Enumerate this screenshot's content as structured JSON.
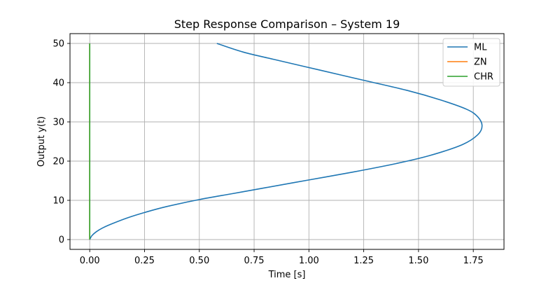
{
  "chart_data": {
    "type": "line",
    "title": "Step Response Comparison – System 19",
    "xlabel": "Time [s]",
    "ylabel": "Output y(t)",
    "xlim": [
      -0.09,
      1.89
    ],
    "ylim": [
      -2.5,
      52.5
    ],
    "xticks": [
      0.0,
      0.25,
      0.5,
      0.75,
      1.0,
      1.25,
      1.5,
      1.75
    ],
    "xtick_labels": [
      "0.00",
      "0.25",
      "0.50",
      "0.75",
      "1.00",
      "1.25",
      "1.50",
      "1.75"
    ],
    "yticks": [
      0,
      10,
      20,
      30,
      40,
      50
    ],
    "ytick_labels": [
      "0",
      "10",
      "20",
      "30",
      "40",
      "50"
    ],
    "grid": true,
    "legend_position": "top-right",
    "series": [
      {
        "name": "ML",
        "color": "#1f77b4",
        "x": [
          0.0,
          0.01,
          0.03,
          0.06,
          0.1,
          0.17,
          0.25,
          0.35,
          0.5,
          0.65,
          0.8,
          1.0,
          1.2,
          1.4,
          1.55,
          1.7,
          1.77,
          1.79,
          1.77,
          1.72,
          1.6,
          1.45,
          1.25,
          1.05,
          0.85,
          0.7,
          0.58
        ],
        "y": [
          0.0,
          1.0,
          2.0,
          3.0,
          4.0,
          5.5,
          6.9,
          8.4,
          10.2,
          11.7,
          13.2,
          15.2,
          17.2,
          19.4,
          21.4,
          24.2,
          26.7,
          29.0,
          31.3,
          33.2,
          35.6,
          38.0,
          40.6,
          43.2,
          45.8,
          47.8,
          50.0
        ]
      },
      {
        "name": "ZN",
        "color": "#ff7f0e",
        "x": [
          0.0,
          0.0
        ],
        "y": [
          0.0,
          50.0
        ]
      },
      {
        "name": "CHR",
        "color": "#2ca02c",
        "x": [
          0.0,
          0.0
        ],
        "y": [
          0.0,
          50.0
        ]
      }
    ]
  }
}
